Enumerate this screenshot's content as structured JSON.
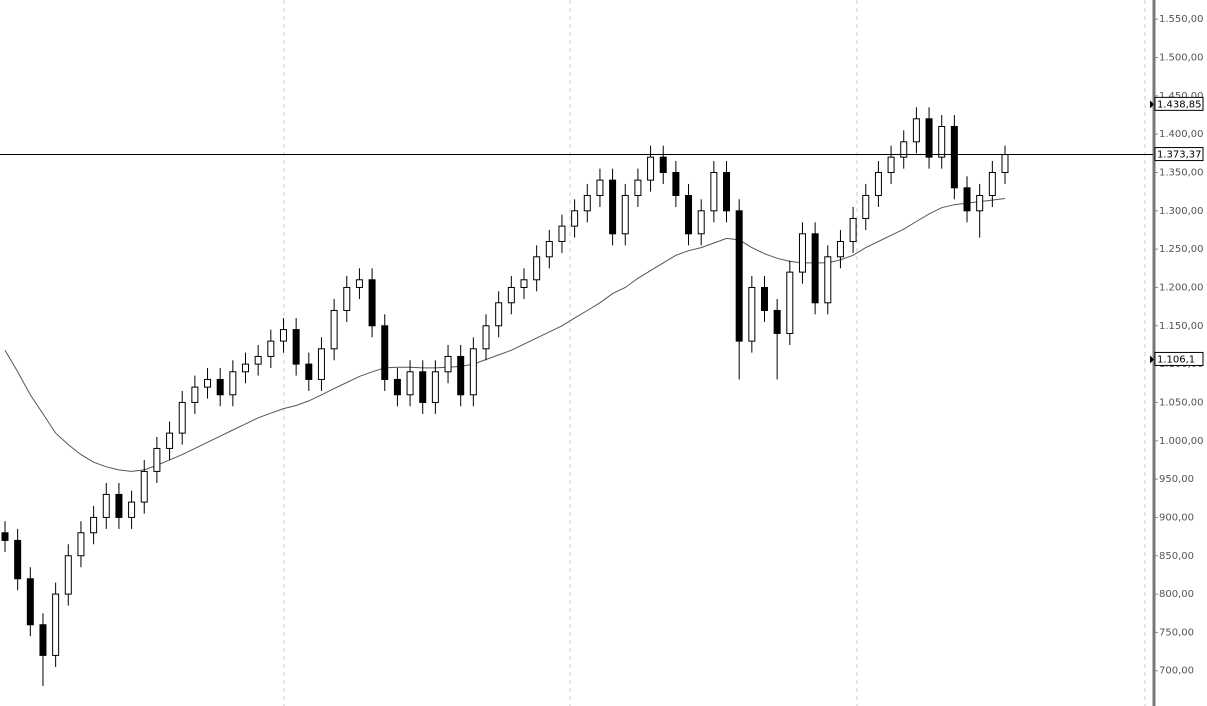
{
  "chart_data": {
    "type": "candlestick",
    "ylim": [
      654,
      1575
    ],
    "yticks": [
      {
        "value": 700,
        "label": "700,00"
      },
      {
        "value": 750,
        "label": "750,00"
      },
      {
        "value": 800,
        "label": "800,00"
      },
      {
        "value": 850,
        "label": "850,00"
      },
      {
        "value": 900,
        "label": "900,00"
      },
      {
        "value": 950,
        "label": "950,00"
      },
      {
        "value": 1000,
        "label": "1.000,00"
      },
      {
        "value": 1050,
        "label": "1.050,00"
      },
      {
        "value": 1100,
        "label": "1.100,00"
      },
      {
        "value": 1150,
        "label": "1.150,00"
      },
      {
        "value": 1200,
        "label": "1.200,00"
      },
      {
        "value": 1250,
        "label": "1.250,00"
      },
      {
        "value": 1300,
        "label": "1.300,00"
      },
      {
        "value": 1350,
        "label": "1.350,00"
      },
      {
        "value": 1400,
        "label": "1.400,00"
      },
      {
        "value": 1450,
        "label": "1.450,00"
      },
      {
        "value": 1500,
        "label": "1.500,00"
      },
      {
        "value": 1550,
        "label": "1.550,00"
      }
    ],
    "open": [
      880,
      870,
      820,
      760,
      720,
      800,
      850,
      880,
      900,
      930,
      900,
      920,
      960,
      990,
      1010,
      1050,
      1070,
      1080,
      1060,
      1090,
      1100,
      1110,
      1130,
      1145,
      1100,
      1080,
      1120,
      1170,
      1200,
      1210,
      1150,
      1080,
      1060,
      1090,
      1050,
      1090,
      1110,
      1060,
      1120,
      1150,
      1180,
      1200,
      1210,
      1240,
      1260,
      1280,
      1300,
      1320,
      1340,
      1270,
      1320,
      1340,
      1370,
      1350,
      1320,
      1270,
      1300,
      1350,
      1300,
      1130,
      1200,
      1170,
      1140,
      1220,
      1270,
      1180,
      1240,
      1260,
      1290,
      1320,
      1350,
      1370,
      1390,
      1420,
      1370,
      1410,
      1330,
      1300,
      1320,
      1350
    ],
    "high": [
      895,
      885,
      835,
      775,
      815,
      865,
      895,
      915,
      945,
      945,
      935,
      975,
      1005,
      1025,
      1065,
      1085,
      1095,
      1095,
      1105,
      1115,
      1125,
      1145,
      1160,
      1160,
      1115,
      1135,
      1185,
      1215,
      1225,
      1225,
      1165,
      1095,
      1105,
      1105,
      1105,
      1125,
      1125,
      1135,
      1165,
      1195,
      1215,
      1225,
      1255,
      1275,
      1295,
      1315,
      1335,
      1355,
      1355,
      1335,
      1355,
      1385,
      1385,
      1365,
      1335,
      1315,
      1365,
      1365,
      1315,
      1215,
      1215,
      1185,
      1235,
      1285,
      1285,
      1255,
      1275,
      1305,
      1335,
      1365,
      1385,
      1405,
      1435,
      1435,
      1425,
      1425,
      1345,
      1335,
      1365,
      1385
    ],
    "low": [
      855,
      805,
      745,
      680,
      705,
      785,
      835,
      865,
      885,
      885,
      885,
      905,
      945,
      975,
      995,
      1035,
      1055,
      1045,
      1045,
      1075,
      1085,
      1095,
      1115,
      1085,
      1065,
      1065,
      1105,
      1155,
      1185,
      1135,
      1065,
      1045,
      1045,
      1035,
      1035,
      1075,
      1045,
      1045,
      1105,
      1135,
      1165,
      1185,
      1195,
      1225,
      1245,
      1265,
      1285,
      1305,
      1255,
      1255,
      1305,
      1325,
      1335,
      1305,
      1255,
      1255,
      1285,
      1285,
      1080,
      1115,
      1155,
      1080,
      1125,
      1205,
      1165,
      1165,
      1225,
      1245,
      1275,
      1305,
      1335,
      1355,
      1375,
      1355,
      1355,
      1315,
      1285,
      1265,
      1305,
      1335
    ],
    "close": [
      870,
      820,
      760,
      720,
      800,
      850,
      880,
      900,
      930,
      900,
      920,
      960,
      990,
      1010,
      1050,
      1070,
      1080,
      1060,
      1090,
      1100,
      1110,
      1130,
      1145,
      1100,
      1080,
      1120,
      1170,
      1200,
      1210,
      1150,
      1080,
      1060,
      1090,
      1050,
      1090,
      1110,
      1060,
      1120,
      1150,
      1180,
      1200,
      1210,
      1240,
      1260,
      1280,
      1300,
      1320,
      1340,
      1270,
      1320,
      1340,
      1370,
      1350,
      1320,
      1270,
      1300,
      1350,
      1300,
      1130,
      1200,
      1170,
      1140,
      1220,
      1270,
      1180,
      1240,
      1260,
      1290,
      1320,
      1350,
      1370,
      1390,
      1420,
      1370,
      1410,
      1330,
      1300,
      1320,
      1350,
      1373.37
    ],
    "ma": [
      1118,
      1090,
      1060,
      1035,
      1010,
      995,
      982,
      972,
      966,
      962,
      960,
      962,
      968,
      975,
      982,
      990,
      998,
      1006,
      1014,
      1022,
      1030,
      1036,
      1042,
      1046,
      1052,
      1060,
      1068,
      1076,
      1084,
      1090,
      1095,
      1096,
      1096,
      1095,
      1095,
      1096,
      1097,
      1100,
      1106,
      1112,
      1118,
      1126,
      1134,
      1142,
      1150,
      1160,
      1170,
      1180,
      1192,
      1200,
      1212,
      1222,
      1232,
      1242,
      1248,
      1252,
      1258,
      1264,
      1262,
      1252,
      1244,
      1238,
      1234,
      1232,
      1232,
      1232,
      1236,
      1242,
      1252,
      1260,
      1268,
      1276,
      1286,
      1296,
      1304,
      1308,
      1310,
      1312,
      1314,
      1316
    ],
    "last_price": {
      "value": 1373.37,
      "label": "1.373,37"
    },
    "markers": [
      {
        "value": 1438.85,
        "label": "1.438,85"
      },
      {
        "value": 1106.1,
        "label": "1.106,1"
      }
    ]
  }
}
